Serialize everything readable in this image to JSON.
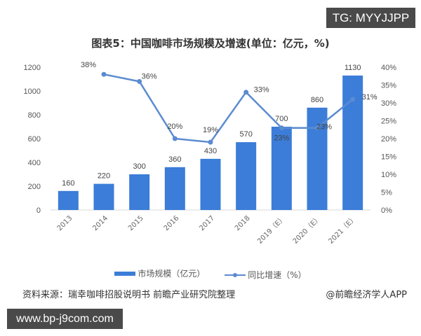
{
  "watermark_top_right": "TG: MYYJJPP",
  "watermark_bottom_left": "www.bp-j9com.com",
  "chart_data": {
    "type": "bar+line",
    "title": "图表5：中国咖啡市场规模及增速(单位：亿元，%)",
    "categories": [
      "2013",
      "2014",
      "2015",
      "2016",
      "2017",
      "2018",
      "2019（E）",
      "2020（E）",
      "2021（E）"
    ],
    "series": [
      {
        "name": "市场规模（亿元）",
        "type": "bar",
        "axis": "left",
        "values": [
          160,
          220,
          300,
          360,
          430,
          570,
          700,
          860,
          1130
        ],
        "color": "#3b7dd8"
      },
      {
        "name": "同比增速（%）",
        "type": "line",
        "axis": "right",
        "values": [
          null,
          38,
          36,
          20,
          19,
          33,
          23,
          23,
          31
        ],
        "labels": [
          "",
          "38%",
          "36%",
          "20%",
          "19%",
          "33%",
          "23%",
          "23%",
          "31%"
        ],
        "color": "#5b8bd0"
      }
    ],
    "left_axis": {
      "ticks": [
        "0",
        "200",
        "400",
        "600",
        "800",
        "1000",
        "1200"
      ],
      "ylim": [
        0,
        1200
      ]
    },
    "right_axis": {
      "ticks": [
        "0%",
        "5%",
        "10%",
        "15%",
        "20%",
        "25%",
        "30%",
        "35%",
        "40%"
      ],
      "ylim": [
        0,
        40
      ]
    },
    "legend_position": "bottom",
    "grid": false
  },
  "legend": {
    "bar": "市场规模（亿元）",
    "line": "同比增速（%）"
  },
  "source": "资料来源：瑞幸咖啡招股说明书 前瞻产业研究院整理",
  "credit": "@前瞻经济学人APP"
}
